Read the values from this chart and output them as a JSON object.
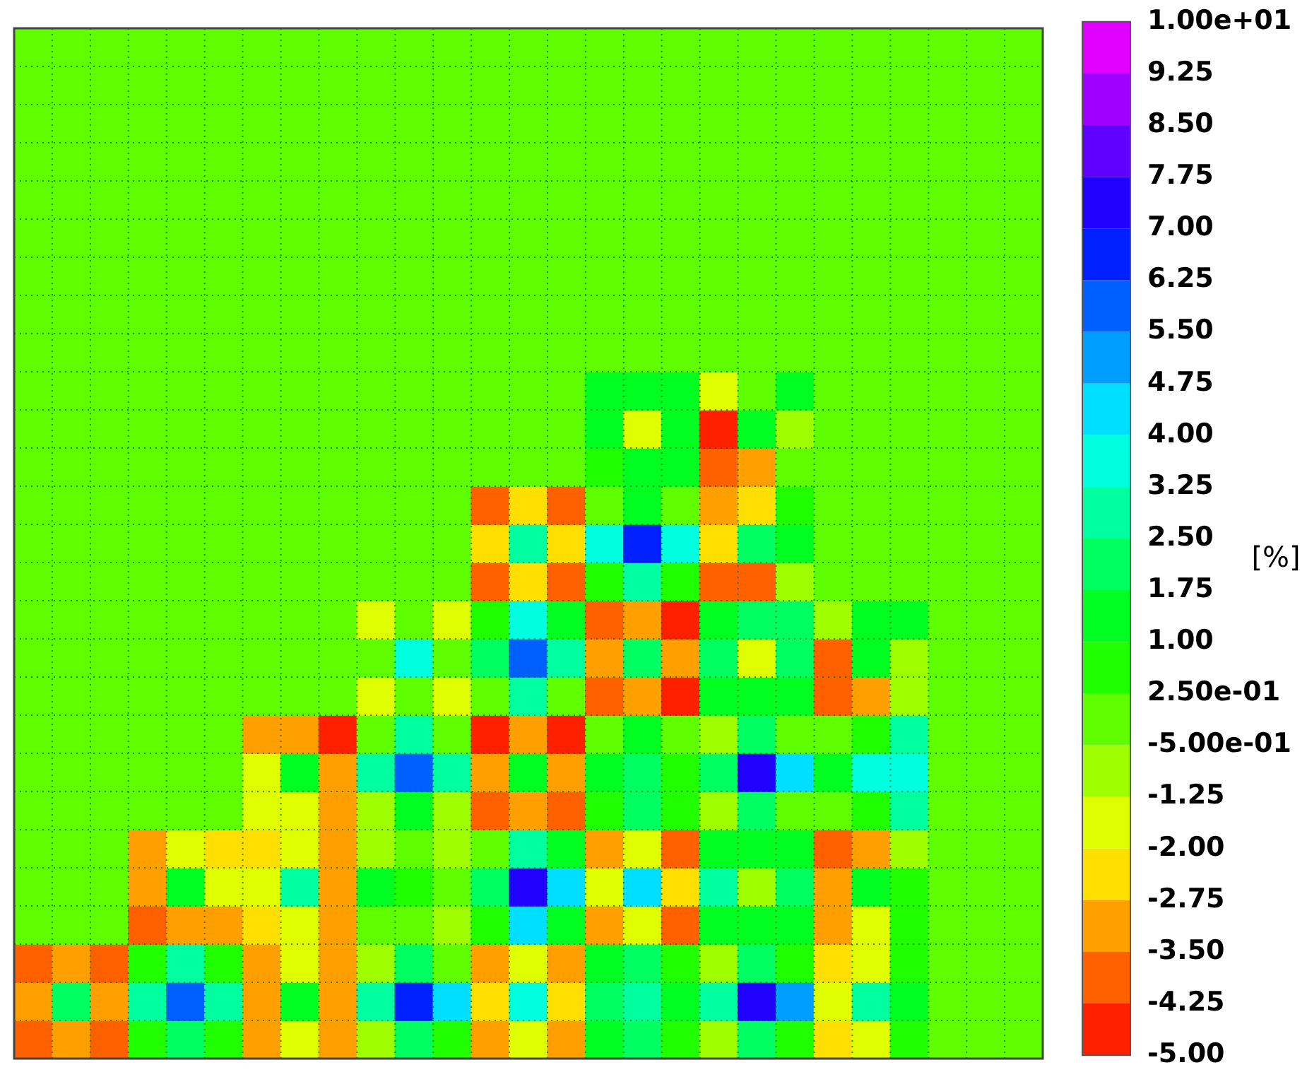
{
  "chart_data": {
    "type": "heatmap",
    "clabel": "[%]",
    "grid": true,
    "tick_labels": false,
    "categories": [
      null,
      null,
      null,
      null,
      null,
      null,
      null,
      null,
      null,
      null,
      null,
      null,
      null,
      null,
      null,
      null,
      null,
      null,
      null,
      null,
      null,
      null,
      null,
      null,
      null,
      null,
      null
    ],
    "y_categories": [
      null,
      null,
      null,
      null,
      null,
      null,
      null,
      null,
      null,
      null,
      null,
      null,
      null,
      null,
      null,
      null,
      null,
      null,
      null,
      null,
      null,
      null,
      null,
      null,
      null,
      null,
      null
    ],
    "clim": [
      -5,
      10
    ],
    "cticks": [
      {
        "value": -5,
        "label": "-5.00"
      },
      {
        "value": -4.25,
        "label": "-4.25"
      },
      {
        "value": -3.5,
        "label": "-3.50"
      },
      {
        "value": -2.75,
        "label": "-2.75"
      },
      {
        "value": -2,
        "label": "-2.00"
      },
      {
        "value": -1.25,
        "label": "-1.25"
      },
      {
        "value": -0.5,
        "label": "-5.00e-01"
      },
      {
        "value": 0.25,
        "label": "2.50e-01"
      },
      {
        "value": 1,
        "label": "1.00"
      },
      {
        "value": 1.75,
        "label": "1.75"
      },
      {
        "value": 2.5,
        "label": "2.50"
      },
      {
        "value": 3.25,
        "label": "3.25"
      },
      {
        "value": 4,
        "label": "4.00"
      },
      {
        "value": 4.75,
        "label": "4.75"
      },
      {
        "value": 5.5,
        "label": "5.50"
      },
      {
        "value": 6.25,
        "label": "6.25"
      },
      {
        "value": 7,
        "label": "7.00"
      },
      {
        "value": 7.75,
        "label": "7.75"
      },
      {
        "value": 8.5,
        "label": "8.50"
      },
      {
        "value": 9.25,
        "label": "9.25"
      },
      {
        "value": 10,
        "label": "1.00e+01"
      }
    ],
    "cells": [
      [
        0,
        0,
        0,
        0,
        0,
        0,
        0,
        0,
        0,
        0,
        0,
        0,
        0,
        0,
        0,
        0,
        0,
        0,
        0,
        0,
        0,
        0,
        0,
        0,
        0,
        0,
        0
      ],
      [
        0,
        0,
        0,
        0,
        0,
        0,
        0,
        0,
        0,
        0,
        0,
        0,
        0,
        0,
        0,
        0,
        0,
        0,
        0,
        0,
        0,
        0,
        0,
        0,
        0,
        0,
        0
      ],
      [
        0,
        0,
        0,
        0,
        0,
        0,
        0,
        0,
        0,
        0,
        0,
        0,
        0,
        0,
        0,
        0,
        0,
        0,
        0,
        0,
        0,
        0,
        0,
        0,
        0,
        0,
        0
      ],
      [
        0,
        0,
        0,
        0,
        0,
        0,
        0,
        0,
        0,
        0,
        0,
        0,
        0,
        0,
        0,
        0,
        0,
        0,
        0,
        0,
        0,
        0,
        0,
        0,
        0,
        0,
        0
      ],
      [
        0,
        0,
        0,
        0,
        0,
        0,
        0,
        0,
        0,
        0,
        0,
        0,
        0,
        0,
        0,
        0,
        0,
        0,
        0,
        0,
        0,
        0,
        0,
        0,
        0,
        0,
        0
      ],
      [
        0,
        0,
        0,
        0,
        0,
        0,
        0,
        0,
        0,
        0,
        0,
        0,
        0,
        0,
        0,
        0,
        0,
        0,
        0,
        0,
        0,
        0,
        0,
        0,
        0,
        0,
        0
      ],
      [
        0,
        0,
        0,
        0,
        0,
        0,
        0,
        0,
        0,
        0,
        0,
        0,
        0,
        0,
        0,
        0,
        0,
        0,
        0,
        0,
        0,
        0,
        0,
        0,
        0,
        0,
        0
      ],
      [
        0,
        0,
        0,
        0,
        0,
        0,
        0,
        0,
        0,
        0,
        0,
        0,
        0,
        0,
        0,
        0,
        0,
        0,
        0,
        0,
        0,
        0,
        0,
        0,
        0,
        0,
        0
      ],
      [
        0,
        0,
        0,
        0,
        0,
        0,
        0,
        0,
        0,
        0,
        0,
        0,
        0,
        0,
        0,
        0,
        0,
        0,
        0,
        0,
        0,
        0,
        0,
        0,
        0,
        0,
        0
      ],
      [
        0,
        0,
        0,
        0,
        0,
        0,
        0,
        0,
        0,
        0,
        0,
        0,
        0,
        0,
        0,
        1.3,
        1.7,
        1.4,
        -1.6,
        0,
        1.7,
        0,
        0,
        0,
        0,
        0,
        0
      ],
      [
        0,
        0,
        0,
        0,
        0,
        0,
        0,
        0,
        0,
        0,
        0,
        0,
        0,
        0,
        0,
        1.0,
        -2.0,
        1.7,
        -4.4,
        1.0,
        -0.6,
        0,
        0,
        0,
        0,
        0,
        0
      ],
      [
        0,
        0,
        0,
        0,
        0,
        0,
        0,
        0,
        0,
        0,
        0,
        0,
        0,
        0,
        0,
        0.9,
        1.2,
        1.2,
        -4.0,
        -3.0,
        0,
        0,
        0,
        0,
        0,
        0,
        0
      ],
      [
        0,
        0,
        0,
        0,
        0,
        0,
        0,
        0,
        0,
        0,
        0,
        0,
        -3.6,
        -2.6,
        -3.7,
        0.2,
        1.7,
        -0.2,
        -3.2,
        -2.6,
        0.4,
        0,
        0,
        0,
        0,
        0,
        0
      ],
      [
        0,
        0,
        0,
        0,
        0,
        0,
        0,
        0,
        0,
        0,
        0,
        0,
        -2.6,
        2.8,
        -2.6,
        3.6,
        6.6,
        3.6,
        -2.6,
        1.8,
        1.0,
        0,
        0,
        0,
        0,
        0,
        0
      ],
      [
        0,
        0,
        0,
        0,
        0,
        0,
        0,
        0,
        0,
        0,
        0,
        0,
        -3.7,
        -2.6,
        -3.6,
        0.6,
        2.8,
        0.6,
        -4.2,
        -3.9,
        -1.2,
        0,
        0,
        0,
        0,
        0,
        0
      ],
      [
        0,
        0,
        0,
        0,
        0,
        0,
        0,
        0,
        0,
        -2.0,
        -0.4,
        -1.9,
        0.4,
        3.4,
        1.0,
        -4.0,
        -3.1,
        -4.6,
        1.7,
        1.8,
        1.8,
        -1.0,
        1.1,
        1.7,
        0,
        0,
        0
      ],
      [
        0,
        0,
        0,
        0,
        0,
        0,
        0,
        0,
        0,
        -0.4,
        3.4,
        -0.4,
        1.9,
        6.2,
        3.0,
        -3.2,
        2.4,
        -3.5,
        2.1,
        -1.5,
        2.1,
        -3.9,
        1.0,
        -1.0,
        0,
        0,
        0
      ],
      [
        0,
        0,
        0,
        0,
        0,
        0,
        0,
        0,
        0,
        -2.0,
        -0.4,
        -2.0,
        -0.4,
        2.7,
        0.2,
        -4.2,
        -3.1,
        -4.6,
        1.1,
        1.4,
        1.3,
        -4.2,
        -3.2,
        -1.0,
        0,
        0,
        0
      ],
      [
        0,
        0,
        0,
        0,
        0,
        0,
        -3.4,
        -3.4,
        -4.6,
        -0.4,
        2.6,
        -0.1,
        -4.5,
        -3.4,
        -4.6,
        0,
        1.3,
        -0.4,
        -0.9,
        2.3,
        -0.1,
        -0.4,
        0.6,
        2.5,
        0,
        0,
        0
      ],
      [
        0,
        0,
        0,
        0,
        0,
        0,
        -1.5,
        1.4,
        -3.5,
        2.7,
        6.0,
        2.7,
        -3.4,
        1.7,
        -3.4,
        1.0,
        2.3,
        0.8,
        2.4,
        7.6,
        4.0,
        1.0,
        3.6,
        3.8,
        0,
        0,
        0
      ],
      [
        0,
        0,
        0,
        0,
        0,
        0,
        -2.0,
        -1.5,
        -3.5,
        -0.8,
        1.6,
        -0.6,
        -4.2,
        -3.0,
        -4.2,
        0.8,
        2.3,
        0.6,
        -0.8,
        2.1,
        -0.4,
        -0.4,
        0.8,
        2.6,
        0,
        0,
        0
      ],
      [
        0,
        0,
        0,
        -3.2,
        -1.5,
        -2.2,
        -2.4,
        -1.5,
        -3.5,
        -0.6,
        -0.2,
        -1.2,
        -0.4,
        3.2,
        1.0,
        -3.4,
        -2.0,
        -3.8,
        1.7,
        1.7,
        1.3,
        -4.2,
        -3.1,
        -0.6,
        0,
        0,
        0
      ],
      [
        0,
        0,
        0,
        -3.5,
        1.4,
        -1.9,
        -1.5,
        2.6,
        -3.0,
        1.0,
        0.8,
        0,
        1.9,
        7.0,
        4.5,
        -1.7,
        4.0,
        -2.4,
        3.2,
        -1.2,
        2.3,
        -3.5,
        1.7,
        0.6,
        0,
        0,
        0
      ],
      [
        0,
        0,
        0,
        -4.2,
        -3.4,
        -3.2,
        -2.6,
        -1.9,
        -3.5,
        -0.4,
        -0.1,
        -1.0,
        0.4,
        4.0,
        1.7,
        -3.1,
        -1.9,
        -3.8,
        1.7,
        1.4,
        1.3,
        -3.4,
        -2.0,
        0.8,
        0,
        0,
        0
      ],
      [
        -3.9,
        -3.0,
        -3.9,
        0.6,
        2.6,
        0.4,
        -3.2,
        -1.9,
        -3.4,
        -0.6,
        1.9,
        0.2,
        -3.3,
        -2.0,
        -3.4,
        1.4,
        2.4,
        0.8,
        -0.6,
        2.4,
        0.8,
        -2.4,
        -1.9,
        0.8,
        0,
        0,
        0
      ],
      [
        -3.0,
        2.3,
        -3.0,
        3.2,
        6.0,
        2.8,
        -3.4,
        1.4,
        -3.4,
        2.8,
        6.6,
        4.0,
        -2.2,
        3.4,
        -2.4,
        2.3,
        2.5,
        1.3,
        2.9,
        7.6,
        5.1,
        -1.5,
        2.7,
        1.3,
        0,
        0,
        0
      ],
      [
        -3.9,
        -3.0,
        -3.9,
        0.6,
        2.4,
        0.4,
        -3.2,
        -1.9,
        -3.5,
        -0.6,
        1.9,
        0.4,
        -3.4,
        -2.0,
        -3.4,
        1.3,
        2.3,
        0.8,
        -0.6,
        2.4,
        0.8,
        -2.4,
        -1.9,
        0.8,
        0,
        0,
        0
      ]
    ]
  }
}
